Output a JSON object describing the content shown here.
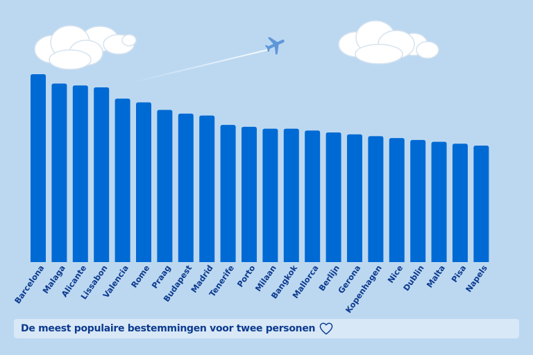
{
  "caption": {
    "text": "De meest populaire bestemmingen voor twee personen",
    "icon": "heart-outline-icon"
  },
  "colors": {
    "background": "#bcd8f1",
    "bar": "#006ad4",
    "label": "#0d3b8f",
    "caption_bg": "#d8e8f6",
    "plane": "#5e97d8",
    "cloud": "#ffffff"
  },
  "decorations": {
    "plane_icon": "airplane-icon",
    "cloud_icon": "cloud-icon"
  },
  "chart_data": {
    "type": "bar",
    "title": "",
    "xlabel": "",
    "ylabel": "",
    "grid": false,
    "legend": "none",
    "ylim": [
      0,
      100
    ],
    "categories": [
      "Barcelona",
      "Malaga",
      "Alicante",
      "Lissabon",
      "Valencia",
      "Rome",
      "Praag",
      "Budapest",
      "Madrid",
      "Tenerife",
      "Porto",
      "Milaan",
      "Bangkok",
      "Mallorca",
      "Berlijn",
      "Gerona",
      "Kopenhagen",
      "Nice",
      "Dublin",
      "Malta",
      "Pisa",
      "Napels"
    ],
    "values": [
      100,
      95,
      94,
      93,
      87,
      85,
      81,
      79,
      78,
      73,
      72,
      71,
      71,
      70,
      69,
      68,
      67,
      66,
      65,
      64,
      63,
      62
    ]
  }
}
